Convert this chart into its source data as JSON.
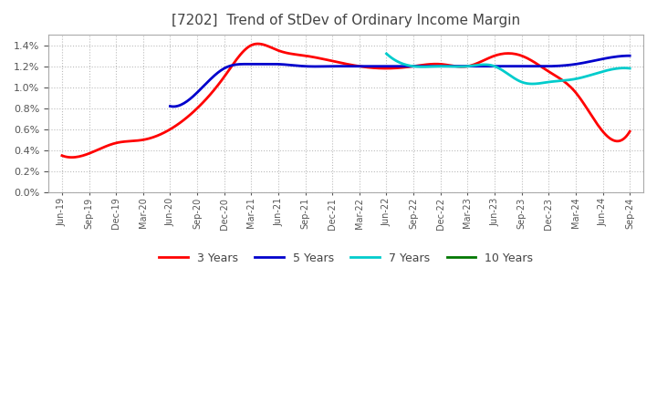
{
  "title": "[7202]  Trend of StDev of Ordinary Income Margin",
  "title_fontsize": 11,
  "title_color": "#444444",
  "background_color": "#ffffff",
  "plot_bg_color": "#ffffff",
  "grid_color": "#bbbbbb",
  "ylim": [
    0.0,
    0.015
  ],
  "x_labels": [
    "Jun-19",
    "Sep-19",
    "Dec-19",
    "Mar-20",
    "Jun-20",
    "Sep-20",
    "Dec-20",
    "Mar-21",
    "Jun-21",
    "Sep-21",
    "Dec-21",
    "Mar-22",
    "Jun-22",
    "Sep-22",
    "Dec-22",
    "Mar-23",
    "Jun-23",
    "Sep-23",
    "Dec-23",
    "Mar-24",
    "Jun-24",
    "Sep-24"
  ],
  "series": {
    "3 Years": {
      "color": "#ff0000",
      "values": [
        0.0035,
        0.0037,
        0.0047,
        0.005,
        0.006,
        0.008,
        0.011,
        0.014,
        0.0135,
        0.013,
        0.0125,
        0.012,
        0.0118,
        0.012,
        0.0122,
        0.012,
        0.013,
        0.013,
        0.0115,
        0.0095,
        0.0058,
        0.0058
      ]
    },
    "5 Years": {
      "color": "#0000cc",
      "values": [
        null,
        null,
        null,
        null,
        0.0082,
        0.0095,
        0.0118,
        0.0122,
        0.0122,
        0.012,
        0.012,
        0.012,
        0.012,
        0.012,
        0.012,
        0.012,
        0.012,
        0.012,
        0.012,
        0.0122,
        0.0127,
        0.013
      ]
    },
    "7 Years": {
      "color": "#00cccc",
      "values": [
        null,
        null,
        null,
        null,
        null,
        null,
        null,
        null,
        null,
        null,
        null,
        null,
        0.0132,
        0.012,
        0.012,
        0.012,
        0.012,
        0.0105,
        0.0105,
        0.0108,
        0.0115,
        0.0118
      ]
    },
    "10 Years": {
      "color": "#007700",
      "values": [
        null,
        null,
        null,
        null,
        null,
        null,
        null,
        null,
        null,
        null,
        null,
        null,
        null,
        null,
        null,
        null,
        null,
        null,
        null,
        null,
        null,
        null
      ]
    }
  },
  "legend_labels": [
    "3 Years",
    "5 Years",
    "7 Years",
    "10 Years"
  ],
  "legend_colors": [
    "#ff0000",
    "#0000cc",
    "#00cccc",
    "#007700"
  ]
}
